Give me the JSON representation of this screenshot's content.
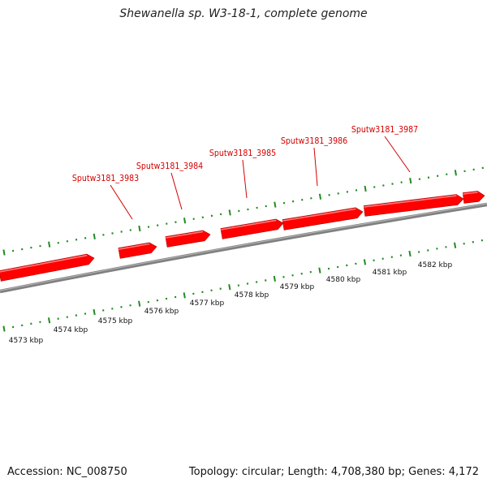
{
  "title": "Shewanella sp. W3-18-1, complete genome",
  "footer": {
    "accession": "Accession: NC_008750",
    "stats": "Topology: circular; Length: 4,708,380 bp; Genes: 4,172"
  },
  "colors": {
    "gene": "#ff0000",
    "gene_label": "#d40000",
    "tick": "#228b22",
    "backbone": "#808080"
  },
  "genes": [
    {
      "label": ""
    },
    {
      "label": "Sputw3181_3983"
    },
    {
      "label": "Sputw3181_3984"
    },
    {
      "label": "Sputw3181_3985"
    },
    {
      "label": "Sputw3181_3986"
    },
    {
      "label": "Sputw3181_3987"
    },
    {
      "label": ""
    }
  ],
  "scale_labels": [
    "4573 kbp",
    "4574 kbp",
    "4575 kbp",
    "4576 kbp",
    "4577 kbp",
    "4578 kbp",
    "4579 kbp",
    "4580 kbp",
    "4581 kbp",
    "4582 kbp"
  ]
}
